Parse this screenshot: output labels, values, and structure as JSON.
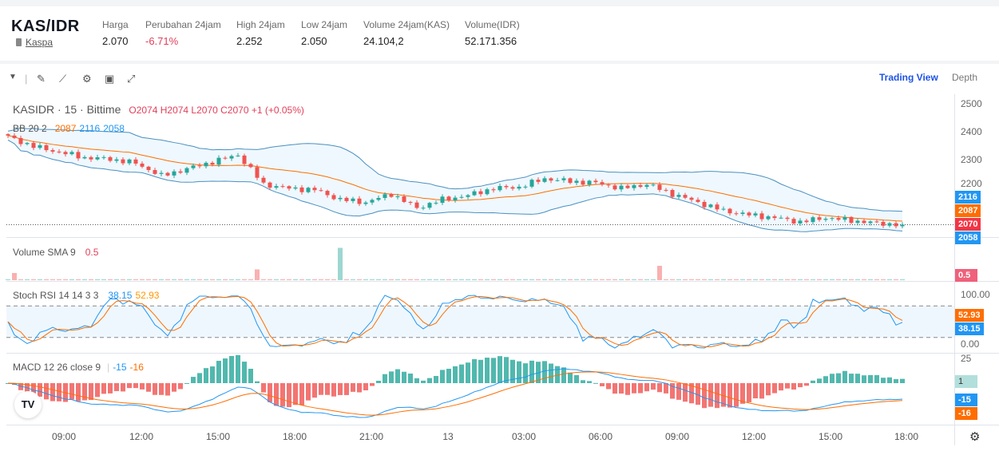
{
  "header": {
    "pair": "KAS/IDR",
    "coin": "Kaspa",
    "stats": [
      {
        "label": "Harga",
        "value": "2.070"
      },
      {
        "label": "Perubahan 24jam",
        "value": "-6.71%"
      },
      {
        "label": "High 24jam",
        "value": "2.252"
      },
      {
        "label": "Low 24jam",
        "value": "2.050"
      },
      {
        "label": "Volume 24jam(KAS)",
        "value": "24.104,2"
      },
      {
        "label": "Volume(IDR)",
        "value": "52.171.356"
      }
    ]
  },
  "toolbar": {
    "icons": [
      "caret-down-icon",
      "pencil-icon",
      "indicator-icon",
      "gear-icon",
      "save-icon",
      "fullscreen-icon"
    ],
    "trading_view": "Trading View",
    "depth": "Depth"
  },
  "legend": {
    "symbol": "KASIDR · 15 · Bittime",
    "ohlc": "O2074 H2074 L2070 C2070 +1 (+0.05%)",
    "bb": {
      "label": "BB 20 2",
      "basis": "2087",
      "upper": "2116",
      "lower": "2058"
    },
    "volume": {
      "label": "Volume SMA 9",
      "value": "0.5"
    },
    "stoch": {
      "label": "Stoch RSI 14 14 3 3",
      "k": "38.15",
      "d": "52.93"
    },
    "macd": {
      "label": "MACD 12 26 close 9",
      "macd": "-15",
      "signal": "-16"
    }
  },
  "axis": {
    "price_ticks": [
      "2500",
      "2400",
      "2300",
      "2200"
    ],
    "stoch_ticks": [
      "100.00",
      "0.00"
    ],
    "macd_tick": "25",
    "tags": {
      "upper": "2116",
      "basis": "2087",
      "last": "2070",
      "lower": "2058",
      "vol": "0.5",
      "d": "52.93",
      "k": "38.15",
      "hist": "1",
      "macd": "-15",
      "signal": "-16"
    }
  },
  "colors": {
    "up": "#26a69a",
    "down": "#ef5350",
    "blue": "#2196f3",
    "orange": "#ff6d00",
    "red": "#f23645",
    "accent": "#1e53e5"
  },
  "chart_data": {
    "type": "candlestick",
    "interval": "15m",
    "x_ticks": [
      "09:00",
      "12:00",
      "15:00",
      "18:00",
      "21:00",
      "13",
      "03:00",
      "06:00",
      "09:00",
      "12:00",
      "15:00",
      "18:00"
    ],
    "price_range": [
      2030,
      2530
    ],
    "hourly_close": [
      2385,
      2350,
      2330,
      2310,
      2305,
      2290,
      2245,
      2270,
      2295,
      2320,
      2215,
      2200,
      2195,
      2160,
      2150,
      2180,
      2130,
      2160,
      2175,
      2200,
      2205,
      2235,
      2225,
      2220,
      2200,
      2215,
      2180,
      2150,
      2120,
      2105,
      2095,
      2080,
      2095,
      2085,
      2075,
      2070
    ],
    "volume_spikes": [
      {
        "candle": 1,
        "value": 2
      },
      {
        "candle": 39,
        "value": 3
      },
      {
        "candle": 52,
        "value": 9
      },
      {
        "candle": 102,
        "value": 4
      }
    ]
  }
}
